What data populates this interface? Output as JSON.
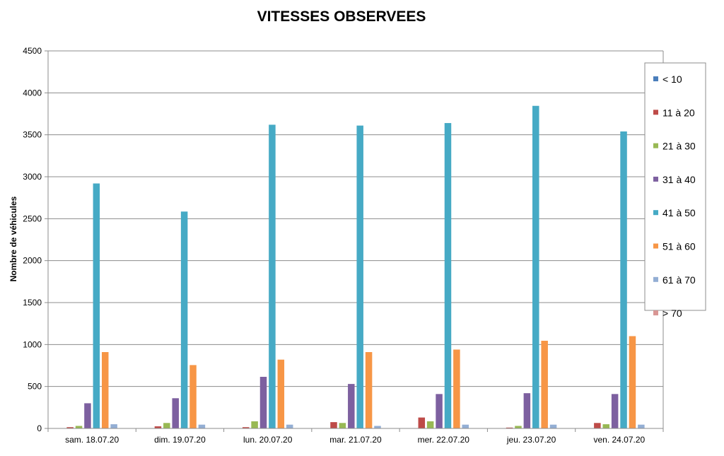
{
  "chart_data": {
    "type": "bar",
    "title": "VITESSES OBSERVEES",
    "xlabel": "",
    "ylabel": "Nombre de véhicules",
    "ylim": [
      0,
      4500
    ],
    "yticks": [
      0,
      500,
      1000,
      1500,
      2000,
      2500,
      3000,
      3500,
      4000,
      4500
    ],
    "grid": true,
    "legend_position": "right",
    "categories": [
      "sam. 18.07.20",
      "dim. 19.07.20",
      "lun. 20.07.20",
      "mar. 21.07.20",
      "mer. 22.07.20",
      "jeu. 23.07.20",
      "ven. 24.07.20"
    ],
    "series": [
      {
        "name": "< 10",
        "color": "#4a7ebb",
        "values": [
          2,
          2,
          2,
          2,
          2,
          2,
          2
        ]
      },
      {
        "name": "11 à 20",
        "color": "#be4b48",
        "values": [
          15,
          25,
          15,
          75,
          130,
          10,
          65
        ]
      },
      {
        "name": "21 à 30",
        "color": "#98b954",
        "values": [
          30,
          65,
          85,
          65,
          85,
          30,
          50
        ]
      },
      {
        "name": "31 à 40",
        "color": "#7d60a0",
        "values": [
          300,
          360,
          615,
          530,
          410,
          420,
          410
        ]
      },
      {
        "name": "41 à 50",
        "color": "#46aac5",
        "values": [
          2920,
          2585,
          3620,
          3610,
          3640,
          3845,
          3540
        ]
      },
      {
        "name": "51 à 60",
        "color": "#f79646",
        "values": [
          910,
          755,
          820,
          910,
          940,
          1045,
          1100
        ]
      },
      {
        "name": "61 à 70",
        "color": "#93aed4",
        "values": [
          50,
          45,
          45,
          30,
          45,
          45,
          45
        ]
      },
      {
        "name": "> 70",
        "color": "#d99694",
        "values": [
          2,
          2,
          2,
          2,
          2,
          2,
          2
        ]
      }
    ]
  }
}
